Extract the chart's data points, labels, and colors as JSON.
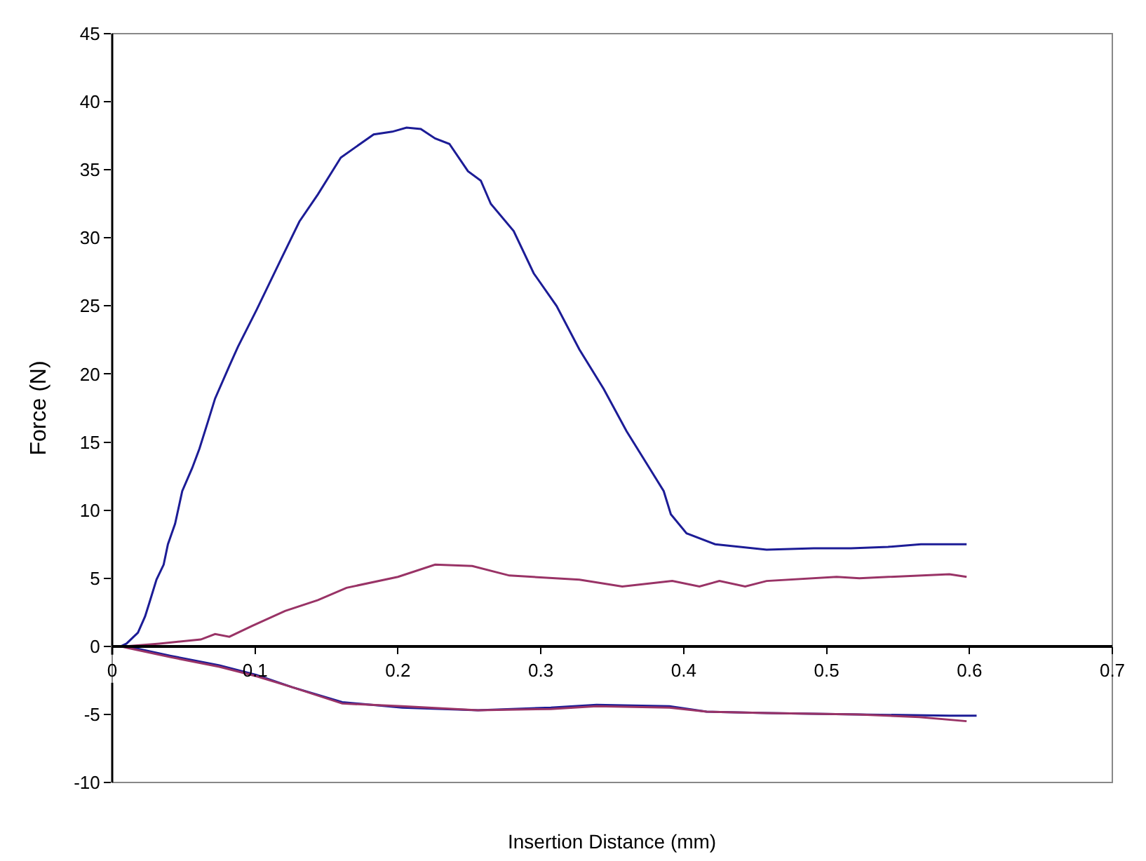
{
  "chart_data": {
    "type": "line",
    "xlabel": "Insertion Distance (mm)",
    "ylabel": "Force (N)",
    "xlim": [
      0,
      0.7
    ],
    "xticks": [
      0,
      0.1,
      0.2,
      0.3,
      0.4,
      0.5,
      0.6,
      0.7
    ],
    "ylim": [
      -10,
      45
    ],
    "yticks": [
      -10,
      -5,
      0,
      5,
      10,
      15,
      20,
      25,
      30,
      35,
      40,
      45
    ],
    "grid": false,
    "marker": "none",
    "line_style": "solid",
    "series": [
      {
        "color": "#1c1c96",
        "x": [
          0.006,
          0.01,
          0.018,
          0.023,
          0.026,
          0.031,
          0.036,
          0.039,
          0.044,
          0.049,
          0.056,
          0.061,
          0.067,
          0.072,
          0.082,
          0.088,
          0.101,
          0.118,
          0.131,
          0.144,
          0.16,
          0.183,
          0.196,
          0.206,
          0.216,
          0.226,
          0.236,
          0.249,
          0.258,
          0.265,
          0.281,
          0.295,
          0.311,
          0.327,
          0.344,
          0.36,
          0.376,
          0.386,
          0.391,
          0.402,
          0.422,
          0.458,
          0.491,
          0.517,
          0.543,
          0.566,
          0.598
        ],
        "values": [
          0,
          0.2,
          1,
          2.2,
          3.2,
          4.9,
          6,
          7.5,
          9,
          11.4,
          13.1,
          14.5,
          16.5,
          18.2,
          20.6,
          22,
          24.7,
          28.4,
          31.2,
          33.2,
          35.9,
          37.6,
          37.8,
          38.1,
          38,
          37.3,
          36.9,
          34.9,
          34.2,
          32.5,
          30.5,
          27.4,
          25,
          21.8,
          18.9,
          15.8,
          13.1,
          11.4,
          9.7,
          8.3,
          7.5,
          7.1,
          7.2,
          7.2,
          7.3,
          7.5,
          7.5
        ]
      },
      {
        "color": "#993366",
        "x": [
          0.006,
          0.01,
          0.033,
          0.062,
          0.072,
          0.082,
          0.098,
          0.121,
          0.144,
          0.164,
          0.2,
          0.226,
          0.252,
          0.278,
          0.327,
          0.357,
          0.392,
          0.411,
          0.425,
          0.443,
          0.458,
          0.507,
          0.523,
          0.586,
          0.598
        ],
        "values": [
          0,
          0,
          0.2,
          0.5,
          0.9,
          0.7,
          1.5,
          2.6,
          3.4,
          4.3,
          5.1,
          6,
          5.9,
          5.2,
          4.9,
          4.4,
          4.8,
          4.4,
          4.8,
          4.4,
          4.8,
          5.1,
          5,
          5.3,
          5.1
        ]
      },
      {
        "color": "#1c1c96",
        "x": [
          0.006,
          0.01,
          0.041,
          0.075,
          0.101,
          0.126,
          0.161,
          0.203,
          0.256,
          0.307,
          0.339,
          0.39,
          0.416,
          0.459,
          0.522,
          0.586,
          0.605
        ],
        "values": [
          0,
          0,
          -0.7,
          -1.4,
          -2.1,
          -3,
          -4.1,
          -4.5,
          -4.7,
          -4.5,
          -4.3,
          -4.4,
          -4.8,
          -4.9,
          -5,
          -5.1,
          -5.1
        ]
      },
      {
        "color": "#993366",
        "x": [
          0.006,
          0.01,
          0.041,
          0.075,
          0.101,
          0.126,
          0.161,
          0.203,
          0.256,
          0.307,
          0.339,
          0.39,
          0.416,
          0.459,
          0.522,
          0.565,
          0.598
        ],
        "values": [
          0,
          -0.1,
          -0.8,
          -1.5,
          -2.2,
          -3,
          -4.2,
          -4.4,
          -4.7,
          -4.6,
          -4.4,
          -4.5,
          -4.8,
          -4.9,
          -5,
          -5.2,
          -5.5
        ]
      }
    ]
  }
}
